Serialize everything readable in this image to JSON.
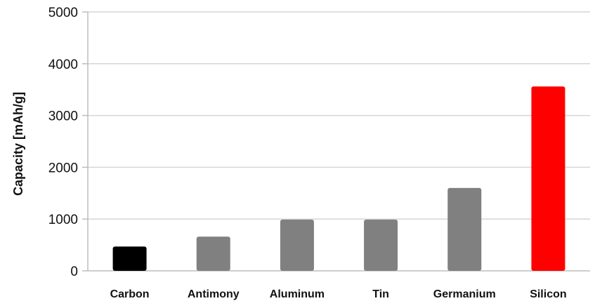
{
  "chart_data": {
    "type": "bar",
    "title": "",
    "xlabel": "",
    "ylabel": "Capacity [mAh/g]",
    "ylim": [
      0,
      5000
    ],
    "yticks": [
      "0",
      "1000",
      "2000",
      "3000",
      "4000",
      "5000"
    ],
    "grid": true,
    "categories": [
      "Carbon",
      "Antimony",
      "Aluminum",
      "Tin",
      "Germanium",
      "Silicon"
    ],
    "values": [
      470,
      660,
      990,
      990,
      1600,
      3560
    ],
    "colors": [
      "#000000",
      "#808080",
      "#808080",
      "#808080",
      "#808080",
      "#ff0000"
    ]
  }
}
